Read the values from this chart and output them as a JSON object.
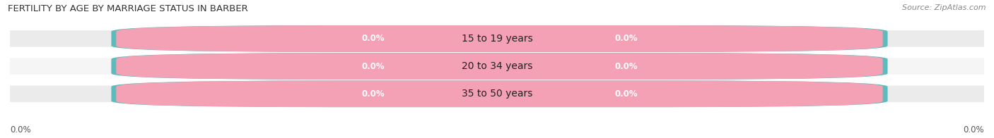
{
  "title": "FERTILITY BY AGE BY MARRIAGE STATUS IN BARBER",
  "source": "Source: ZipAtlas.com",
  "age_groups": [
    "15 to 19 years",
    "20 to 34 years",
    "35 to 50 years"
  ],
  "married_values": [
    "0.0%",
    "0.0%",
    "0.0%"
  ],
  "unmarried_values": [
    "0.0%",
    "0.0%",
    "0.0%"
  ],
  "married_color": "#5abcbc",
  "unmarried_color": "#f4a0b5",
  "row_bg_even": "#ebebeb",
  "row_bg_odd": "#f5f5f5",
  "pill_white": "#ffffff",
  "title_fontsize": 9.5,
  "source_fontsize": 8,
  "bar_label_fontsize": 8.5,
  "age_label_fontsize": 10,
  "legend_fontsize": 9,
  "axis_tick_fontsize": 8.5,
  "axis_label_left": "0.0%",
  "axis_label_right": "0.0%",
  "figsize": [
    14.06,
    1.96
  ],
  "dpi": 100
}
